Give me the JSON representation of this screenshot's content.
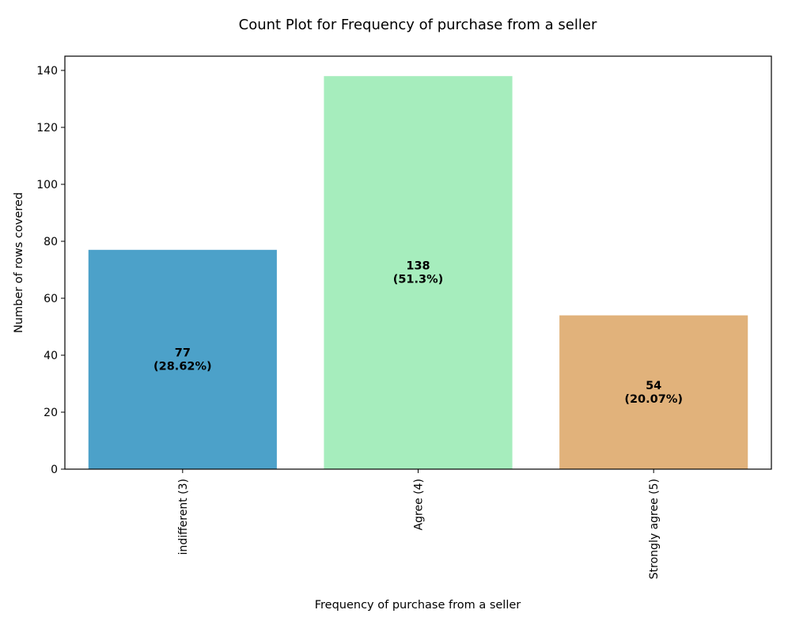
{
  "chart_data": {
    "type": "bar",
    "title": "Count Plot for Frequency of purchase from a seller",
    "xlabel": "Frequency of purchase from a seller",
    "ylabel": "Number of rows covered",
    "categories": [
      "indifferent (3)",
      "Agree (4)",
      "Strongly agree (5)"
    ],
    "values": [
      77,
      138,
      54
    ],
    "bar_labels": [
      {
        "count": "77",
        "percent": "(28.62%)"
      },
      {
        "count": "138",
        "percent": "(51.3%)"
      },
      {
        "count": "54",
        "percent": "(20.07%)"
      }
    ],
    "colors": [
      "#4ca1c9",
      "#a6edbd",
      "#e1b27b"
    ],
    "ylim": [
      0,
      145
    ],
    "yticks": [
      0,
      20,
      40,
      60,
      80,
      100,
      120,
      140
    ],
    "ytick_labels": [
      "0",
      "20",
      "40",
      "60",
      "80",
      "100",
      "120",
      "140"
    ],
    "grid": false,
    "legend": "none"
  }
}
